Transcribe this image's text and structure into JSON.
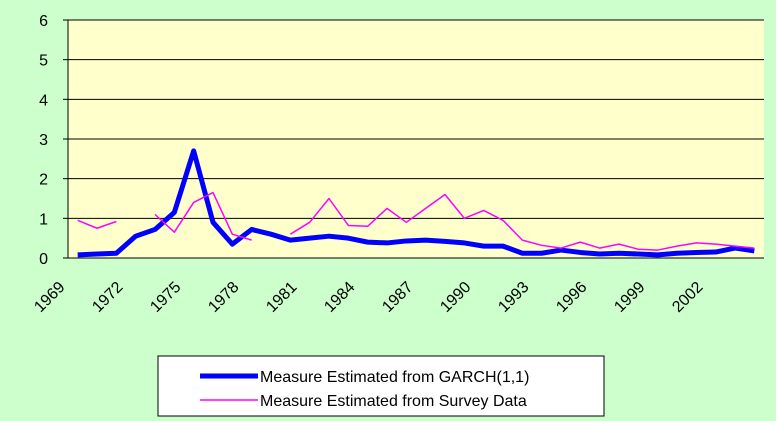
{
  "chart_data": {
    "type": "line",
    "categories": [
      "1969",
      null,
      null,
      "1972",
      null,
      null,
      "1975",
      null,
      null,
      "1978",
      null,
      null,
      "1981",
      null,
      null,
      "1984",
      null,
      null,
      "1987",
      null,
      null,
      "1990",
      null,
      null,
      "1993",
      null,
      null,
      "1996",
      null,
      null,
      "1999",
      null,
      null,
      "2002",
      null,
      null
    ],
    "series": [
      {
        "name": "Measure Estimated from GARCH(1,1)",
        "color": "#0000ff",
        "values": [
          0.08,
          0.1,
          0.12,
          0.55,
          0.72,
          1.15,
          2.7,
          0.9,
          0.35,
          0.72,
          0.6,
          0.45,
          0.5,
          0.55,
          0.5,
          0.4,
          0.38,
          0.43,
          0.45,
          0.42,
          0.38,
          0.3,
          0.3,
          0.12,
          0.12,
          0.2,
          0.14,
          0.1,
          0.12,
          0.1,
          0.08,
          0.12,
          0.14,
          0.15,
          0.25,
          0.18
        ]
      },
      {
        "name": "Measure Estimated from Survey Data",
        "color": "#ff00ff",
        "values": [
          0.95,
          0.75,
          0.92,
          null,
          1.1,
          0.65,
          1.4,
          1.65,
          0.6,
          0.45,
          null,
          0.6,
          0.9,
          1.5,
          0.82,
          0.8,
          1.25,
          0.9,
          1.25,
          1.6,
          1.0,
          1.2,
          0.95,
          0.45,
          0.32,
          0.25,
          0.4,
          0.25,
          0.35,
          0.22,
          0.2,
          0.3,
          0.38,
          0.35,
          0.3,
          0.25
        ]
      }
    ],
    "ylim": [
      0,
      6
    ],
    "yticks": [
      0,
      1,
      2,
      3,
      4,
      5,
      6
    ],
    "grid": true,
    "plot_color": "#ffffcc"
  }
}
